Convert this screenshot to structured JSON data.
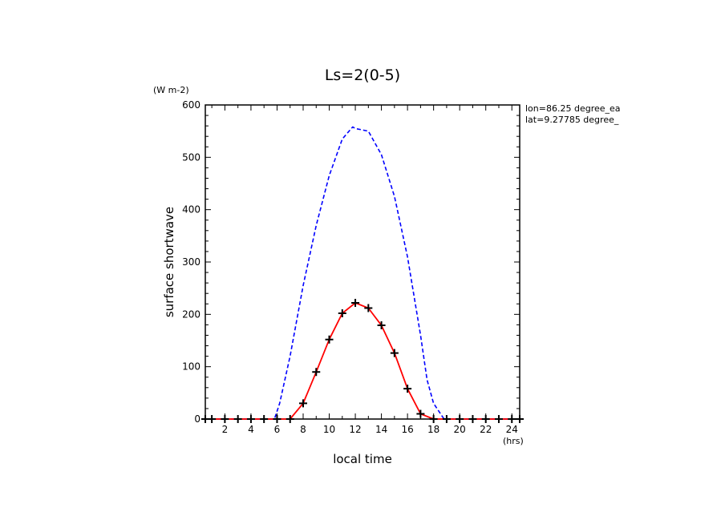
{
  "chart_data": {
    "type": "line",
    "title": "Ls=2(0-5)",
    "xlabel": "local time",
    "ylabel": "surface shortwave",
    "xunit": "(hrs)",
    "yunit": "(W m-2)",
    "xlim": [
      0.5,
      24.6
    ],
    "ylim": [
      0,
      600
    ],
    "xticks": [
      2,
      4,
      6,
      8,
      10,
      12,
      14,
      16,
      18,
      20,
      22,
      24
    ],
    "yticks": [
      0,
      100,
      200,
      300,
      400,
      500,
      600
    ],
    "annotations": [
      "lon=86.25 degree_ea",
      "lat=9.27785 degree_"
    ],
    "colors": {
      "dashed": "#0000ff",
      "solid": "#ff0000",
      "markers": "#000000"
    },
    "series": [
      {
        "style": "dashed",
        "x": [
          0.5,
          1,
          2,
          3,
          4,
          5,
          5.8,
          6.2,
          7,
          8,
          9,
          10,
          11,
          11.8,
          12,
          13,
          14,
          15,
          16,
          17,
          17.5,
          18,
          18.8,
          19,
          20,
          21,
          22,
          23,
          24,
          24.6
        ],
        "y": [
          0,
          0,
          0,
          0,
          0,
          0,
          0,
          30,
          120,
          255,
          370,
          465,
          535,
          558,
          555,
          550,
          505,
          425,
          310,
          160,
          75,
          30,
          0,
          0,
          0,
          0,
          0,
          0,
          0,
          0
        ]
      },
      {
        "style": "solid",
        "markers": true,
        "x": [
          0.5,
          1,
          2,
          3,
          4,
          5,
          6,
          7,
          8,
          9,
          10,
          11,
          12,
          13,
          14,
          15,
          16,
          17,
          18,
          19,
          20,
          21,
          22,
          23,
          24,
          24.6
        ],
        "y": [
          0,
          0,
          0,
          0,
          0,
          0,
          0,
          0,
          30,
          90,
          152,
          202,
          222,
          212,
          179,
          126,
          58,
          10,
          0,
          0,
          0,
          0,
          0,
          0,
          0,
          0
        ]
      }
    ]
  }
}
